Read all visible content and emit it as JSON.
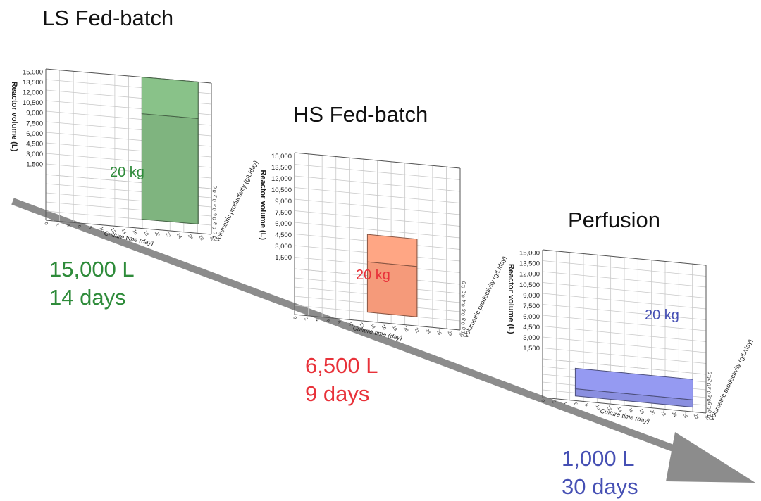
{
  "chart_data": [
    {
      "type": "bar3d",
      "title": "LS Fed-batch",
      "ylabel": "Reactor volume (L)",
      "xlabel": "Culture time (day)",
      "zlabel": "Volumetric productivity (g/L/day)",
      "ylim": [
        0,
        15000
      ],
      "yticks": [
        "1,500",
        "3,000",
        "4,500",
        "6,000",
        "7,500",
        "9,000",
        "10,500",
        "12,000",
        "13,500",
        "15,000"
      ],
      "xticks": [
        "0",
        "2",
        "4",
        "6",
        "8",
        "10",
        "12",
        "14",
        "16",
        "18",
        "20",
        "22",
        "24",
        "26",
        "28",
        "30"
      ],
      "zticks": [
        "0.0",
        "0.2",
        "0.4",
        "0.6",
        "0.8",
        "1.0"
      ],
      "value": 15000,
      "time_days": 14,
      "product": "20 kg",
      "color": "#7fb47f",
      "label_color": "#2e8b3a"
    },
    {
      "type": "bar3d",
      "title": "HS Fed-batch",
      "ylabel": "Reactor volume (L)",
      "xlabel": "Culture time (day)",
      "zlabel": "Volumetric productivity (g/L/day)",
      "ylim": [
        0,
        15000
      ],
      "yticks": [
        "1,500",
        "3,000",
        "4,500",
        "6,000",
        "7,500",
        "9,000",
        "10,500",
        "12,000",
        "13,500",
        "15,000"
      ],
      "xticks": [
        "0",
        "2",
        "4",
        "6",
        "8",
        "10",
        "12",
        "14",
        "16",
        "18",
        "20",
        "22",
        "24",
        "26",
        "28",
        "30"
      ],
      "zticks": [
        "0.0",
        "0.2",
        "0.4",
        "0.6",
        "0.8",
        "1.0"
      ],
      "value": 6500,
      "time_days": 9,
      "product": "20 kg",
      "color": "#f59a7a",
      "label_color": "#e8323a"
    },
    {
      "type": "bar3d",
      "title": "Perfusion",
      "ylabel": "Reactor volume (L)",
      "xlabel": "Culture time (day)",
      "zlabel": "Volumetric productivity (g/L/day)",
      "ylim": [
        0,
        15000
      ],
      "yticks": [
        "1,500",
        "3,000",
        "4,500",
        "6,000",
        "7,500",
        "9,000",
        "10,500",
        "12,000",
        "13,500",
        "15,000"
      ],
      "xticks": [
        "0",
        "2",
        "4",
        "6",
        "8",
        "10",
        "12",
        "14",
        "16",
        "18",
        "20",
        "22",
        "24",
        "26",
        "28",
        "30"
      ],
      "zticks": [
        "0.0",
        "0.2",
        "0.4",
        "0.6",
        "0.8",
        "1.0"
      ],
      "value": 1000,
      "time_days": 30,
      "product": "20 kg",
      "color": "#8a8fe0",
      "label_color": "#4650b4"
    }
  ],
  "summaries": [
    {
      "volume": "15,000 L",
      "duration": "14 days",
      "color": "#2e8b3a"
    },
    {
      "volume": "6,500 L",
      "duration": "9 days",
      "color": "#e8323a"
    },
    {
      "volume": "1,000 L",
      "duration": "30 days",
      "color": "#4650b4"
    }
  ],
  "arrow_color": "#8c8c8c"
}
